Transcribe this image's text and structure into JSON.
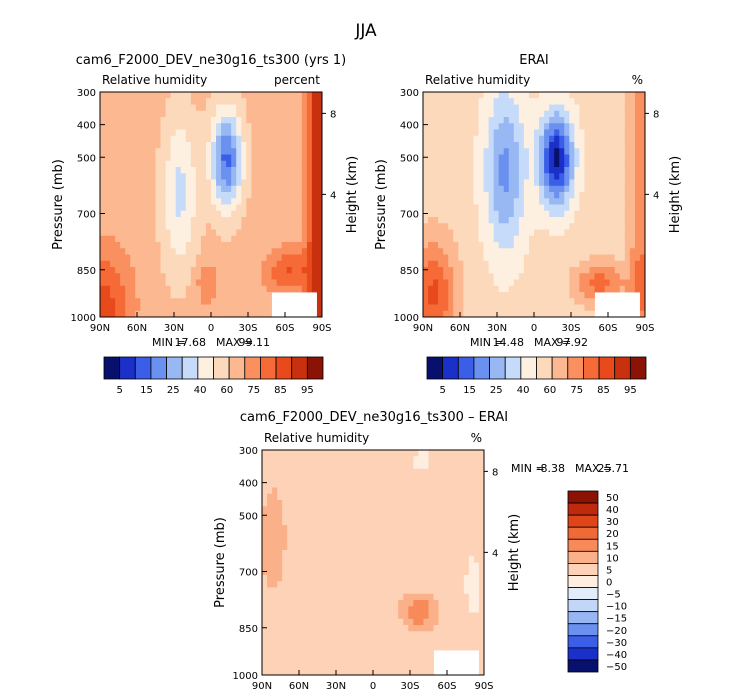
{
  "figure": {
    "title": "JJA"
  },
  "chart_data": [
    {
      "type": "heatmap",
      "id": "model",
      "title": "cam6_F2000_DEV_ne30g16_ts300 (yrs 1)",
      "left_label": "Relative humidity",
      "right_label": "percent",
      "xlabel": "",
      "ylabel": "Pressure (mb)",
      "y2label": "Height (km)",
      "x_ticks": [
        "90N",
        "60N",
        "30N",
        "0",
        "30S",
        "60S",
        "90S"
      ],
      "y_ticks": [
        "300",
        "400",
        "500",
        "700",
        "850",
        "1000"
      ],
      "y2_ticks": [
        "8",
        "4"
      ],
      "stats": {
        "min_label": "MIN =",
        "min": "17.68",
        "max_label": "MAX =",
        "max": "99.11"
      },
      "colorbar_labels": [
        "5",
        "15",
        "25",
        "40",
        "60",
        "75",
        "85",
        "95"
      ],
      "colorbar_colors": [
        "#08106e",
        "#1a30c8",
        "#3b5ee8",
        "#6a90f0",
        "#98b8f4",
        "#c6dbfa",
        "#fdf0e0",
        "#fdd9bc",
        "#fcb991",
        "#fa9060",
        "#f66a38",
        "#e84a1c",
        "#c8300e",
        "#8a1306"
      ]
    },
    {
      "type": "heatmap",
      "id": "erai",
      "title": "ERAI",
      "left_label": "Relative humidity",
      "right_label": "%",
      "xlabel": "",
      "ylabel": "Pressure (mb)",
      "y2label": "Height (km)",
      "x_ticks": [
        "90N",
        "60N",
        "30N",
        "0",
        "30S",
        "60S",
        "90S"
      ],
      "y_ticks": [
        "300",
        "400",
        "500",
        "700",
        "850",
        "1000"
      ],
      "y2_ticks": [
        "8",
        "4"
      ],
      "stats": {
        "min_label": "MIN =",
        "min": "14.48",
        "max_label": "MAX =",
        "max": "97.92"
      },
      "colorbar_labels": [
        "5",
        "15",
        "25",
        "40",
        "60",
        "75",
        "85",
        "95"
      ],
      "colorbar_colors": [
        "#08106e",
        "#1a30c8",
        "#3b5ee8",
        "#6a90f0",
        "#98b8f4",
        "#c6dbfa",
        "#fdf0e0",
        "#fdd9bc",
        "#fcb991",
        "#fa9060",
        "#f66a38",
        "#e84a1c",
        "#c8300e",
        "#8a1306"
      ]
    },
    {
      "type": "heatmap",
      "id": "diff",
      "title": "cam6_F2000_DEV_ne30g16_ts300 – ERAI",
      "left_label": "Relative humidity",
      "right_label": "%",
      "xlabel": "",
      "ylabel": "Pressure (mb)",
      "y2label": "Height (km)",
      "x_ticks": [
        "90N",
        "60N",
        "30N",
        "0",
        "30S",
        "60S",
        "90S"
      ],
      "y_ticks": [
        "300",
        "400",
        "500",
        "700",
        "850",
        "1000"
      ],
      "y2_ticks": [
        "8",
        "4"
      ],
      "stats": {
        "min_label": "MIN =",
        "min": "-8.38",
        "max_label": "MAX =",
        "max": "25.71"
      },
      "colorbar_labels": [
        "50",
        "40",
        "30",
        "20",
        "15",
        "10",
        "5",
        "0",
        "−5",
        "−10",
        "−15",
        "−20",
        "−30",
        "−40",
        "−50"
      ],
      "colorbar_colors": [
        "#8a1306",
        "#c02a0c",
        "#e0451a",
        "#f06a38",
        "#f78a58",
        "#fab088",
        "#fdd2b6",
        "#fdeee0",
        "#e2ecfb",
        "#c2d6f8",
        "#98b6f4",
        "#6a90f0",
        "#3b5ee8",
        "#1a30c8",
        "#08106e"
      ]
    }
  ]
}
